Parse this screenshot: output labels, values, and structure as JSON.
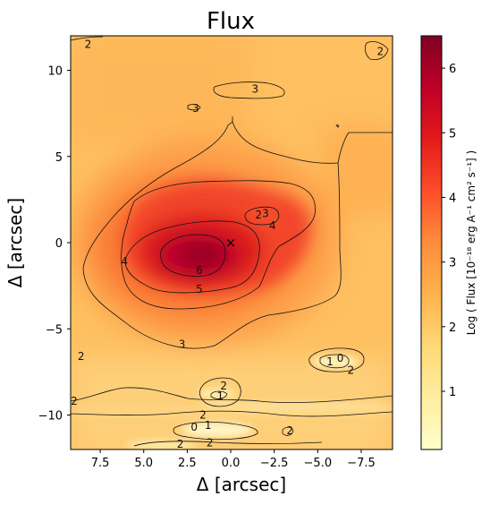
{
  "chart_data": {
    "type": "heatmap",
    "title": "Flux",
    "xlabel": "Δ [arcsec]",
    "ylabel": "Δ [arcsec]",
    "xlim": [
      9.2,
      -9.3
    ],
    "ylim": [
      -12,
      12
    ],
    "x_ticks": [
      7.5,
      5.0,
      2.5,
      0.0,
      -2.5,
      -5.0,
      -7.5
    ],
    "x_tick_labels": [
      "7.5",
      "5.0",
      "2.5",
      "0.0",
      "−2.5",
      "−5.0",
      "−7.5"
    ],
    "y_ticks": [
      10,
      5,
      0,
      -5,
      -10
    ],
    "y_tick_labels": [
      "10",
      "5",
      "0",
      "−5",
      "−10"
    ],
    "colorbar": {
      "label": "Log ( Flux [10⁻¹⁸ erg A⁻¹ cm² s⁻¹] )",
      "range": [
        0.1,
        6.5
      ],
      "ticks": [
        1,
        2,
        3,
        4,
        5,
        6
      ],
      "tick_labels": [
        "1",
        "2",
        "3",
        "4",
        "5",
        "6"
      ],
      "colormap": "YlOrRd",
      "colors": [
        "#ffffcc",
        "#ffeda0",
        "#fed976",
        "#feb24c",
        "#fd8d3c",
        "#fc4e2a",
        "#e31a1c",
        "#bd0026",
        "#800026"
      ]
    },
    "center_marker": {
      "x": 0.0,
      "y": 0.0,
      "symbol": "×"
    },
    "contour_levels": [
      1,
      2,
      3,
      4,
      5,
      6
    ],
    "contour_labels": [
      {
        "text": "2",
        "x": 8.2,
        "y": 11.5
      },
      {
        "text": "2",
        "x": -8.6,
        "y": 11.1
      },
      {
        "text": "3",
        "x": -1.4,
        "y": 8.9
      },
      {
        "text": "3",
        "x": 2.0,
        "y": 7.8
      },
      {
        "text": "2",
        "x": -1.6,
        "y": 1.6
      },
      {
        "text": "3",
        "x": -2.0,
        "y": 1.7
      },
      {
        "text": "4",
        "x": -2.4,
        "y": 1.0
      },
      {
        "text": "4",
        "x": 6.1,
        "y": -1.1
      },
      {
        "text": "6",
        "x": 1.8,
        "y": -1.6
      },
      {
        "text": "5",
        "x": 1.8,
        "y": -2.7
      },
      {
        "text": "3",
        "x": 2.8,
        "y": -5.9
      },
      {
        "text": "2",
        "x": 8.6,
        "y": -6.6
      },
      {
        "text": "1",
        "x": -5.7,
        "y": -6.9
      },
      {
        "text": "0",
        "x": -6.3,
        "y": -6.7
      },
      {
        "text": "2",
        "x": -6.9,
        "y": -7.4
      },
      {
        "text": "2",
        "x": 0.4,
        "y": -8.3
      },
      {
        "text": "1",
        "x": 0.6,
        "y": -8.9
      },
      {
        "text": "2",
        "x": 9.0,
        "y": -9.2
      },
      {
        "text": "2",
        "x": 1.6,
        "y": -10.0
      },
      {
        "text": "0",
        "x": 2.1,
        "y": -10.7
      },
      {
        "text": "1",
        "x": 1.3,
        "y": -10.6
      },
      {
        "text": "2",
        "x": -3.4,
        "y": -10.9
      },
      {
        "text": "2",
        "x": 2.9,
        "y": -11.7
      },
      {
        "text": "2",
        "x": 1.2,
        "y": -11.6
      }
    ]
  }
}
